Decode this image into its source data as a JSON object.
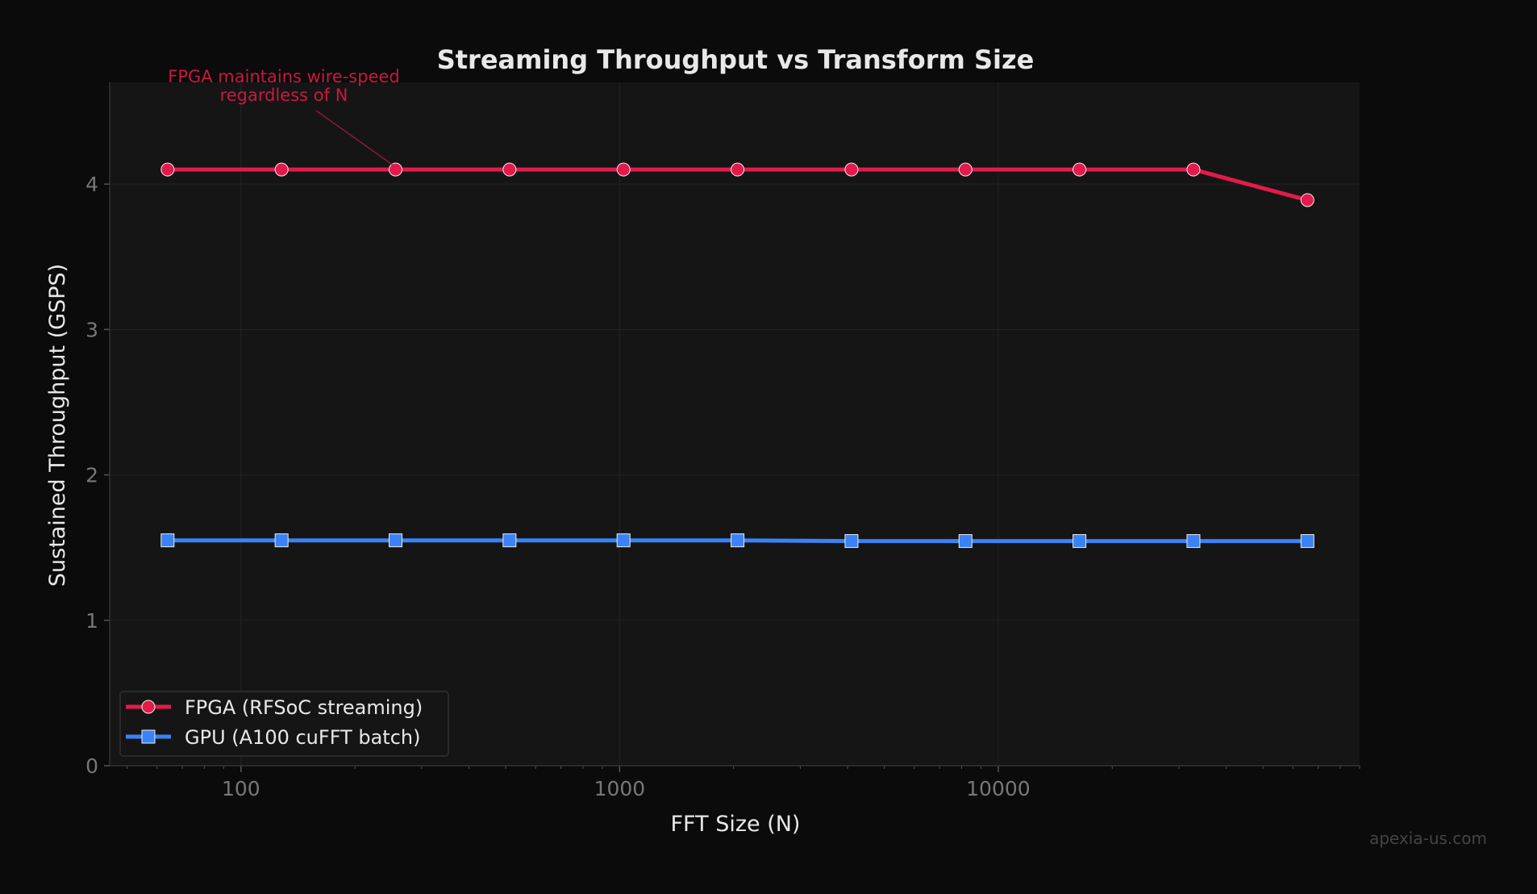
{
  "chart_data": {
    "type": "line",
    "title": "Streaming Throughput vs Transform Size",
    "xlabel": "FFT Size  (N)",
    "ylabel": "Sustained Throughput  (GSPS)",
    "xscale": "log",
    "xlim": [
      45,
      90000
    ],
    "ylim": [
      0,
      4.7
    ],
    "xticks": [
      100,
      1000,
      10000
    ],
    "xtick_labels": [
      "100",
      "1000",
      "10000"
    ],
    "yticks": [
      0,
      1,
      2,
      3,
      4
    ],
    "ytick_labels": [
      "0",
      "1",
      "2",
      "3",
      "4"
    ],
    "grid": true,
    "legend_position": "lower-left",
    "x": [
      64,
      128,
      256,
      512,
      1024,
      2048,
      4096,
      8192,
      16384,
      32768,
      65536
    ],
    "series": [
      {
        "name": "FPGA  (RFSoC streaming)",
        "color": "#e31b4b",
        "marker": "circle",
        "values": [
          4.1,
          4.1,
          4.1,
          4.1,
          4.1,
          4.1,
          4.1,
          4.1,
          4.1,
          4.1,
          3.89
        ]
      },
      {
        "name": "GPU  (A100 cuFFT batch)",
        "color": "#3b82f6",
        "marker": "square",
        "values": [
          1.55,
          1.55,
          1.55,
          1.55,
          1.55,
          1.55,
          1.545,
          1.545,
          1.545,
          1.545,
          1.545
        ]
      }
    ],
    "annotation": {
      "lines": [
        "FPGA maintains wire-speed",
        "regardless of N"
      ],
      "x": 256,
      "y": 4.1,
      "color": "#c8193f"
    }
  },
  "watermark": "apexia-us.com"
}
